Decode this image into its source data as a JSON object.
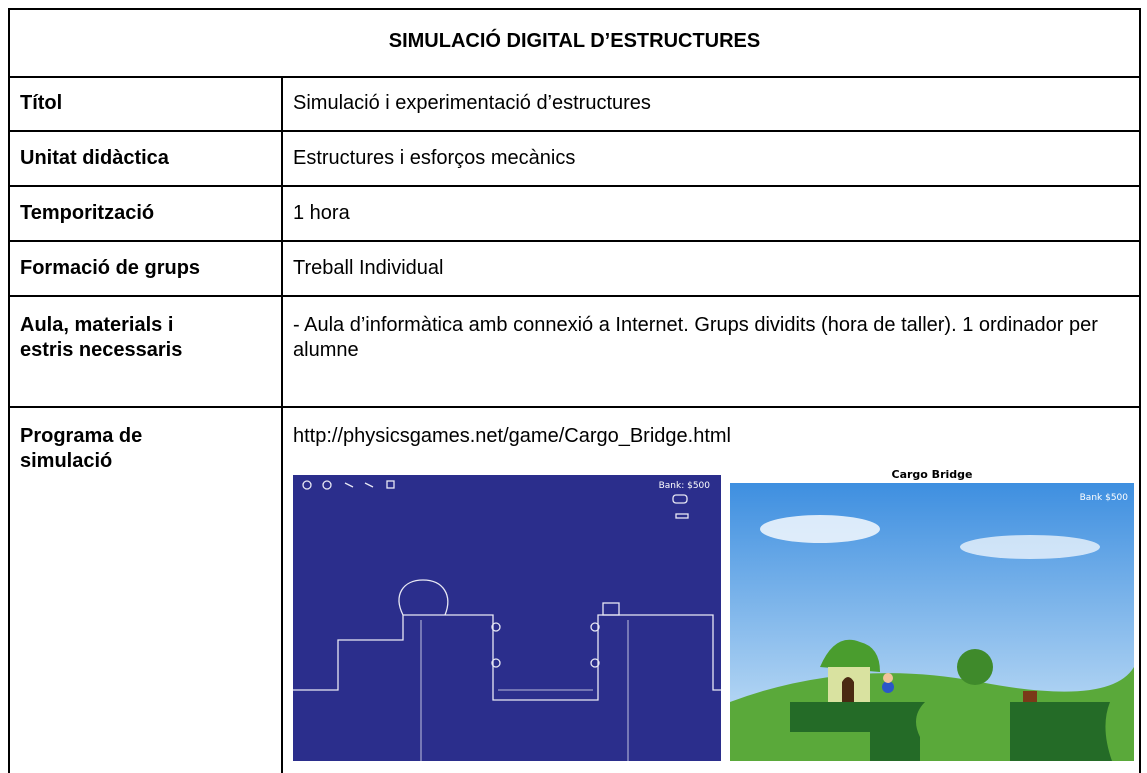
{
  "header": {
    "title": "SIMULACIÓ DIGITAL D’ESTRUCTURES"
  },
  "table": {
    "rows": [
      [
        "Títol",
        "Simulació i experimentació d’estructures"
      ],
      [
        "Unitat didàctica",
        "Estructures i esforços mecànics"
      ],
      [
        "Temporització",
        "1 hora"
      ],
      [
        "Formació de grups",
        "Treball Individual"
      ],
      [
        "Aula, materials i\nestris necessaris",
        "- Aula d’informàtica amb connexió a Internet. Grups dividits (hora de taller). 1 ordinador per alumne"
      ],
      [
        "Programa de\nsimulació",
        "http://physicsgames.net/game/Cargo_Bridge.html"
      ]
    ]
  },
  "images": {
    "left": {
      "bank": "Bank: $500"
    },
    "right": {
      "title": "Cargo Bridge",
      "bank": "Bank $500"
    }
  }
}
